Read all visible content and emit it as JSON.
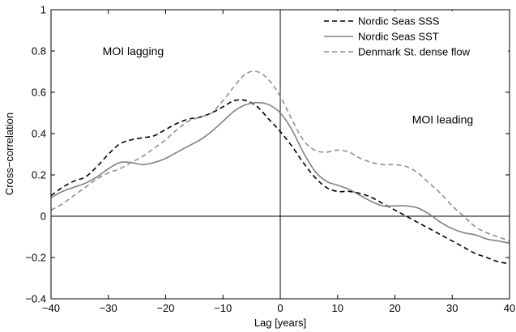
{
  "chart_data": {
    "type": "line",
    "title": "",
    "xlabel": "Lag  [years]",
    "ylabel": "Cross−correlation",
    "xlim": [
      -40,
      40
    ],
    "ylim": [
      -0.4,
      1
    ],
    "xticks": [
      -40,
      -30,
      -20,
      -10,
      0,
      10,
      20,
      30,
      40
    ],
    "xtick_labels": [
      "−40",
      "−30",
      "−20",
      "−10",
      "0",
      "10",
      "20",
      "30",
      "40"
    ],
    "yticks": [
      -0.4,
      -0.2,
      0,
      0.2,
      0.4,
      0.6,
      0.8,
      1
    ],
    "ytick_labels": [
      "−0.4",
      "−0.2",
      "0",
      "0.2",
      "0.4",
      "0.6",
      "0.8",
      "1"
    ],
    "grid": false,
    "legend_position": "top-right",
    "reference_lines": [
      {
        "axis": "y",
        "value": 0
      },
      {
        "axis": "x",
        "value": 0
      }
    ],
    "annotations": [
      {
        "text": "MOI lagging",
        "x": -31,
        "y": 0.78
      },
      {
        "text": "MOI leading",
        "x": 23,
        "y": 0.45
      }
    ],
    "series": [
      {
        "name": "Nordic Seas SSS",
        "color": "#000000",
        "style": "dashed",
        "x": [
          -40,
          -38,
          -36,
          -34,
          -32,
          -30,
          -28,
          -26,
          -24,
          -22,
          -20,
          -18,
          -16,
          -14,
          -12,
          -10,
          -8,
          -6,
          -4,
          -2,
          0,
          2,
          4,
          6,
          8,
          10,
          12,
          14,
          16,
          18,
          20,
          22,
          24,
          26,
          28,
          30,
          32,
          34,
          36,
          38,
          40
        ],
        "y": [
          0.1,
          0.14,
          0.17,
          0.19,
          0.24,
          0.3,
          0.35,
          0.37,
          0.38,
          0.39,
          0.42,
          0.45,
          0.47,
          0.48,
          0.5,
          0.53,
          0.56,
          0.56,
          0.53,
          0.47,
          0.41,
          0.34,
          0.26,
          0.19,
          0.14,
          0.12,
          0.12,
          0.11,
          0.09,
          0.06,
          0.03,
          0.0,
          -0.03,
          -0.06,
          -0.09,
          -0.12,
          -0.15,
          -0.18,
          -0.2,
          -0.22,
          -0.23
        ]
      },
      {
        "name": "Nordic Seas SST",
        "color": "#808080",
        "style": "solid",
        "x": [
          -40,
          -38,
          -36,
          -34,
          -32,
          -30,
          -28,
          -26,
          -24,
          -22,
          -20,
          -18,
          -16,
          -14,
          -12,
          -10,
          -8,
          -6,
          -4,
          -2,
          0,
          2,
          4,
          6,
          8,
          10,
          12,
          14,
          16,
          18,
          20,
          22,
          24,
          26,
          28,
          30,
          32,
          34,
          36,
          38,
          40
        ],
        "y": [
          0.09,
          0.12,
          0.14,
          0.16,
          0.19,
          0.23,
          0.26,
          0.26,
          0.25,
          0.26,
          0.28,
          0.31,
          0.34,
          0.37,
          0.41,
          0.46,
          0.51,
          0.54,
          0.55,
          0.54,
          0.5,
          0.42,
          0.31,
          0.22,
          0.17,
          0.15,
          0.13,
          0.1,
          0.07,
          0.05,
          0.05,
          0.05,
          0.04,
          0.01,
          -0.03,
          -0.06,
          -0.08,
          -0.09,
          -0.11,
          -0.12,
          -0.13
        ]
      },
      {
        "name": "Denmark St. dense flow",
        "color": "#909090",
        "style": "dashed",
        "x": [
          -40,
          -38,
          -36,
          -34,
          -32,
          -30,
          -28,
          -26,
          -24,
          -22,
          -20,
          -18,
          -16,
          -14,
          -12,
          -10,
          -8,
          -6,
          -4,
          -2,
          0,
          2,
          4,
          6,
          8,
          10,
          12,
          14,
          16,
          18,
          20,
          22,
          24,
          26,
          28,
          30,
          32,
          34,
          36,
          38,
          40
        ],
        "y": [
          0.03,
          0.06,
          0.1,
          0.14,
          0.18,
          0.21,
          0.23,
          0.26,
          0.29,
          0.33,
          0.37,
          0.42,
          0.46,
          0.48,
          0.5,
          0.56,
          0.63,
          0.69,
          0.7,
          0.66,
          0.58,
          0.47,
          0.37,
          0.32,
          0.31,
          0.32,
          0.31,
          0.28,
          0.26,
          0.25,
          0.25,
          0.24,
          0.21,
          0.16,
          0.11,
          0.05,
          0.0,
          -0.05,
          -0.08,
          -0.1,
          -0.12
        ]
      }
    ]
  }
}
